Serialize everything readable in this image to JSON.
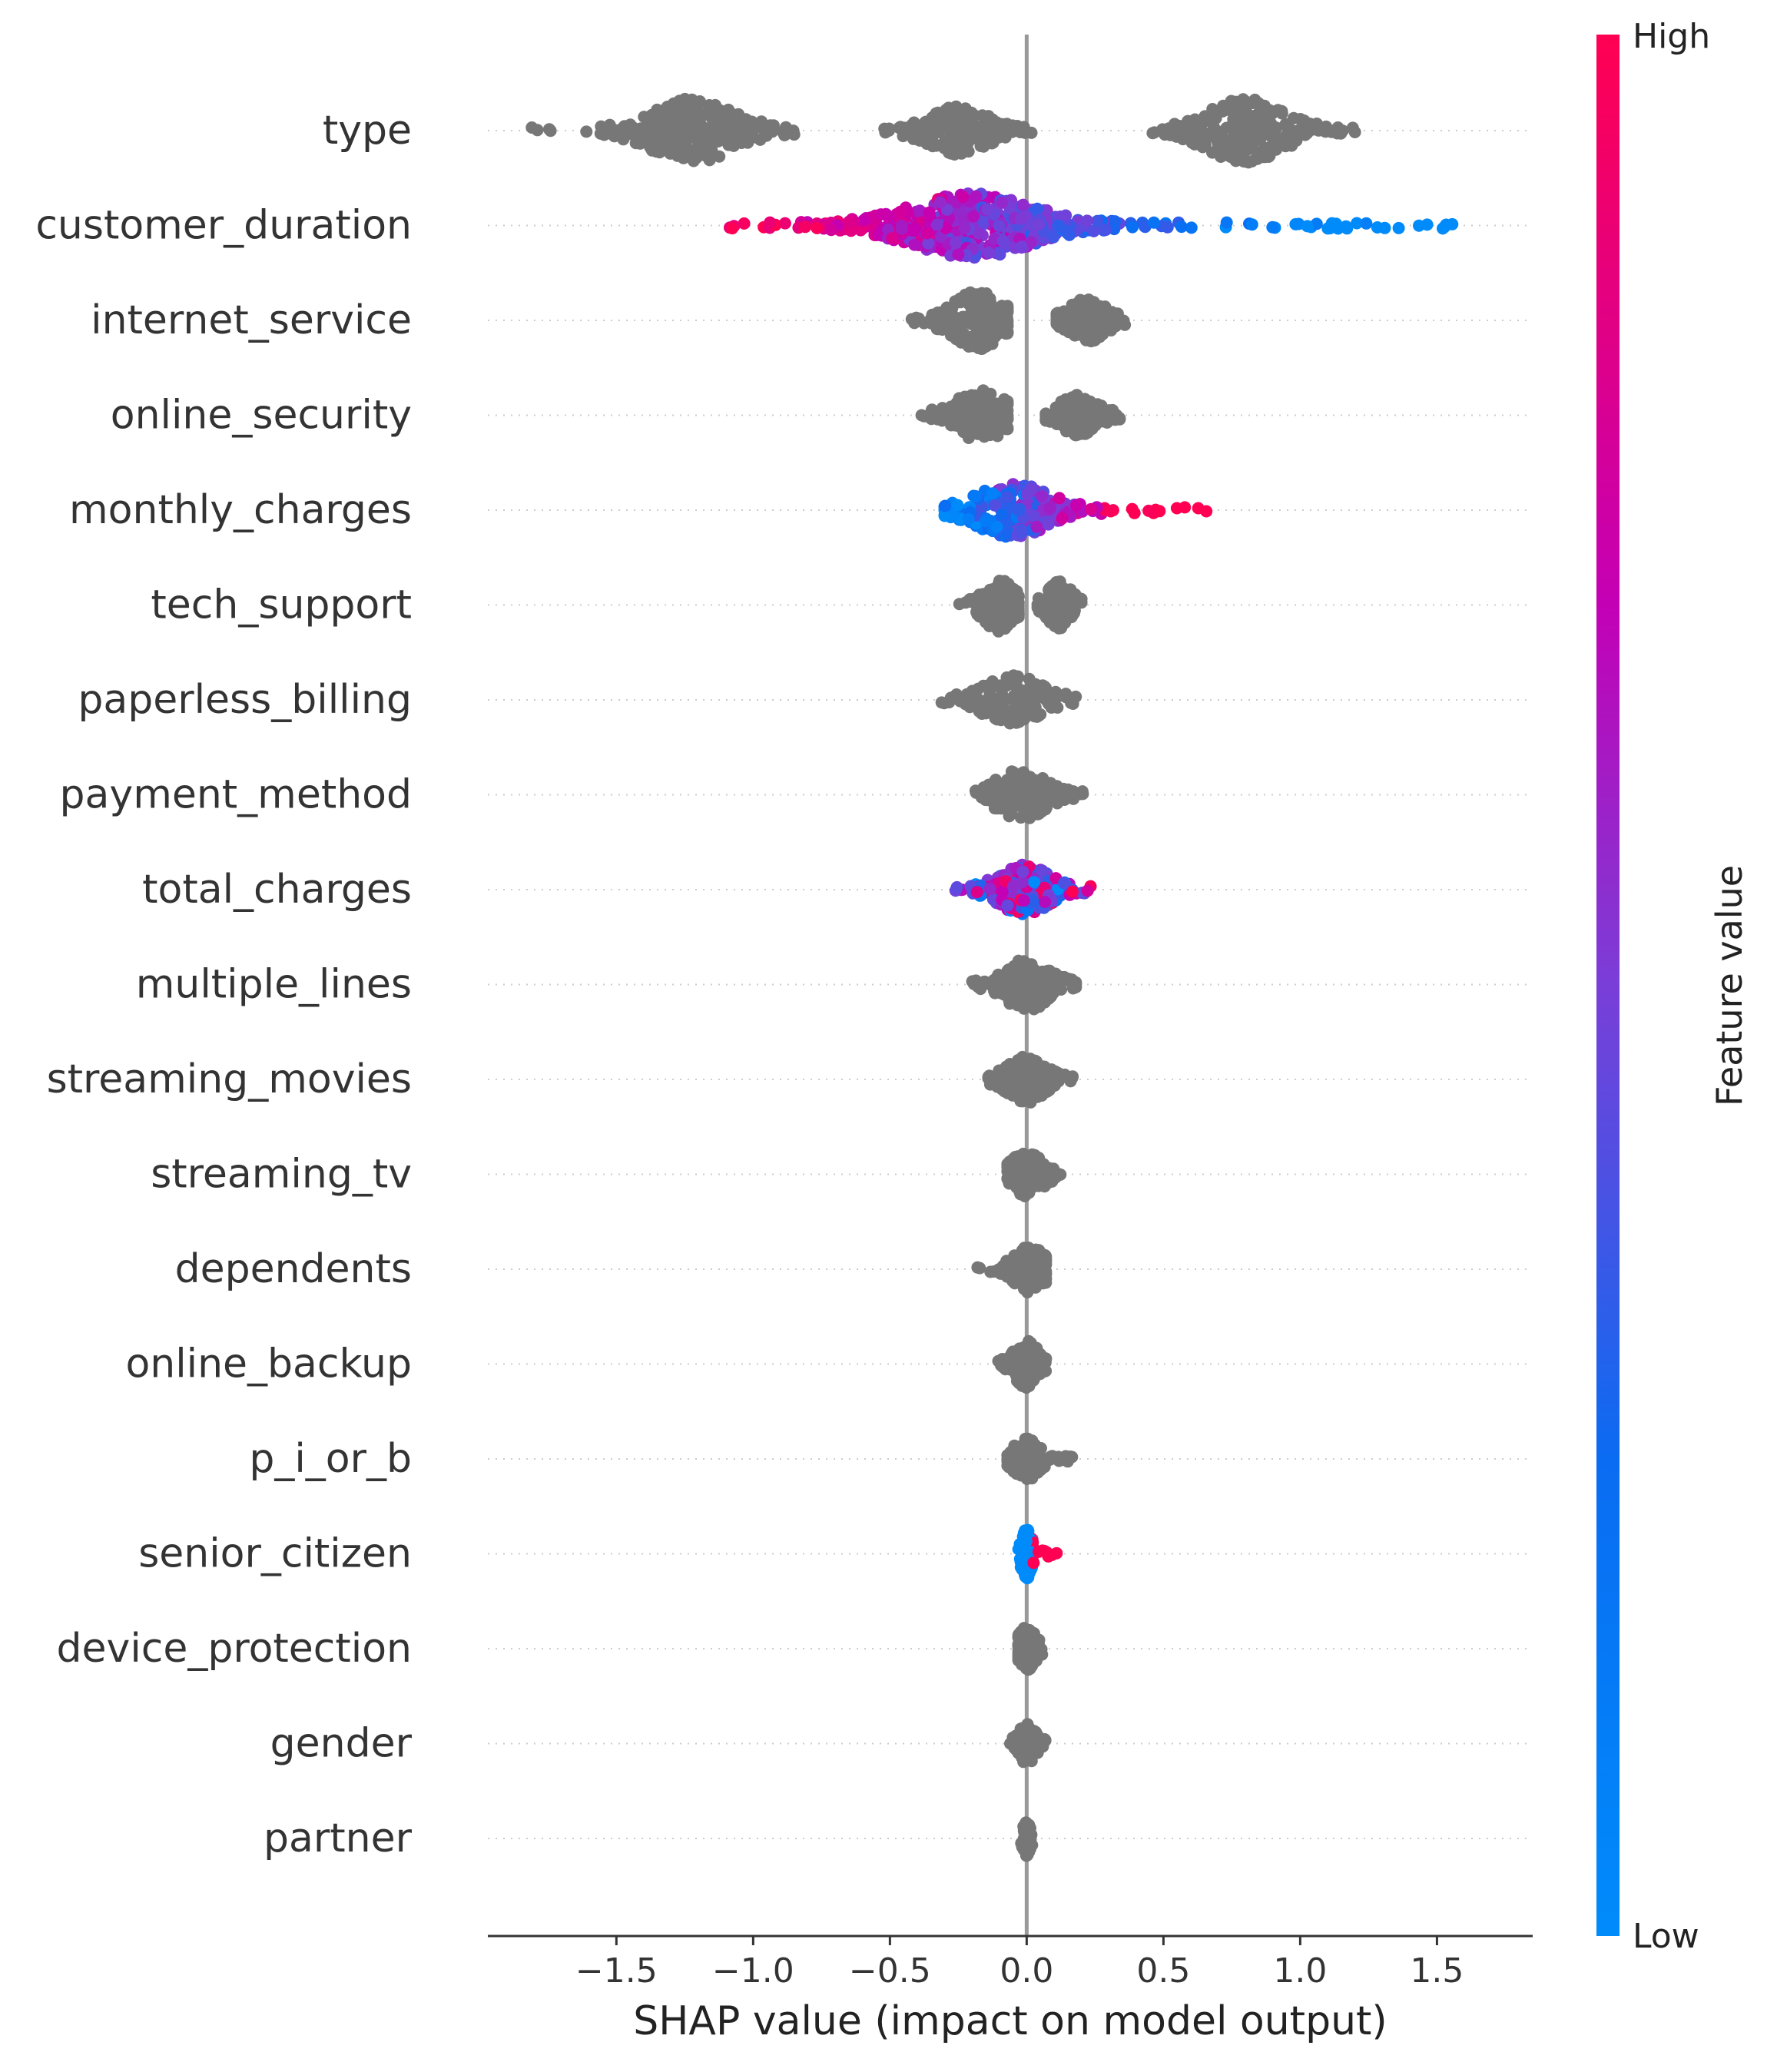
{
  "chart_data": {
    "type": "scatter",
    "subtype": "shap-beeswarm",
    "xlabel": "SHAP value (impact on model output)",
    "ylabel": "",
    "xlim": [
      -1.97,
      1.85
    ],
    "xticks": [
      -1.5,
      -1.0,
      -0.5,
      0.0,
      0.5,
      1.0,
      1.5
    ],
    "xtick_labels": [
      "−1.5",
      "−1.0",
      "−0.5",
      "0.0",
      "0.5",
      "1.0",
      "1.5"
    ],
    "colorbar": {
      "title": "Feature value",
      "high_label": "High",
      "low_label": "Low"
    },
    "colors": {
      "high": "#ff0052",
      "low": "#008bfb",
      "no_value": "#777777",
      "zero_line": "#999999"
    },
    "features": [
      {
        "name": "type",
        "colored": false,
        "groups": [
          {
            "center": -1.22,
            "spread": 0.12,
            "min": -1.82,
            "max": -0.85,
            "height": 1.0
          },
          {
            "center": -0.25,
            "spread": 0.08,
            "min": -0.52,
            "max": 0.02,
            "height": 0.75
          },
          {
            "center": 0.8,
            "spread": 0.11,
            "min": 0.45,
            "max": 1.2,
            "height": 1.0
          }
        ]
      },
      {
        "name": "customer_duration",
        "colored": true,
        "groups": [
          {
            "center": -0.2,
            "spread": 0.18,
            "min": -1.1,
            "max": 1.65,
            "height": 1.0
          }
        ]
      },
      {
        "name": "internet_service",
        "colored": false,
        "groups": [
          {
            "center": -0.18,
            "spread": 0.07,
            "min": -0.42,
            "max": -0.07,
            "height": 0.9
          },
          {
            "center": 0.22,
            "spread": 0.05,
            "min": 0.11,
            "max": 0.37,
            "height": 0.65
          }
        ]
      },
      {
        "name": "online_security",
        "colored": false,
        "groups": [
          {
            "center": -0.17,
            "spread": 0.07,
            "min": -0.42,
            "max": -0.07,
            "height": 0.8
          },
          {
            "center": 0.19,
            "spread": 0.05,
            "min": 0.07,
            "max": 0.34,
            "height": 0.6
          }
        ]
      },
      {
        "name": "monthly_charges",
        "colored": true,
        "groups": [
          {
            "center": -0.05,
            "spread": 0.1,
            "min": -0.3,
            "max": 0.66,
            "height": 0.85
          }
        ]
      },
      {
        "name": "tech_support",
        "colored": false,
        "groups": [
          {
            "center": -0.1,
            "spread": 0.04,
            "min": -0.25,
            "max": -0.03,
            "height": 0.8
          },
          {
            "center": 0.12,
            "spread": 0.03,
            "min": 0.04,
            "max": 0.2,
            "height": 0.7
          }
        ]
      },
      {
        "name": "paperless_billing",
        "colored": false,
        "groups": [
          {
            "center": -0.05,
            "spread": 0.08,
            "min": -0.37,
            "max": 0.18,
            "height": 0.75
          }
        ]
      },
      {
        "name": "payment_method",
        "colored": false,
        "groups": [
          {
            "center": -0.02,
            "spread": 0.07,
            "min": -0.2,
            "max": 0.22,
            "height": 0.75
          }
        ]
      },
      {
        "name": "total_charges",
        "colored": true,
        "groups": [
          {
            "center": -0.01,
            "spread": 0.07,
            "min": -0.3,
            "max": 0.27,
            "height": 0.75
          }
        ]
      },
      {
        "name": "multiple_lines",
        "colored": false,
        "groups": [
          {
            "center": 0.0,
            "spread": 0.06,
            "min": -0.23,
            "max": 0.18,
            "height": 0.8
          }
        ]
      },
      {
        "name": "streaming_movies",
        "colored": false,
        "groups": [
          {
            "center": 0.0,
            "spread": 0.05,
            "min": -0.14,
            "max": 0.17,
            "height": 0.7
          }
        ]
      },
      {
        "name": "streaming_tv",
        "colored": false,
        "groups": [
          {
            "center": 0.0,
            "spread": 0.04,
            "min": -0.07,
            "max": 0.13,
            "height": 0.7
          }
        ]
      },
      {
        "name": "dependents",
        "colored": false,
        "groups": [
          {
            "center": 0.01,
            "spread": 0.04,
            "min": -0.19,
            "max": 0.07,
            "height": 0.7
          }
        ]
      },
      {
        "name": "online_backup",
        "colored": false,
        "groups": [
          {
            "center": 0.0,
            "spread": 0.03,
            "min": -0.11,
            "max": 0.07,
            "height": 0.7
          }
        ]
      },
      {
        "name": "p_i_or_b",
        "colored": false,
        "groups": [
          {
            "center": 0.0,
            "spread": 0.03,
            "min": -0.07,
            "max": 0.18,
            "height": 0.65
          }
        ]
      },
      {
        "name": "senior_citizen",
        "colored": true,
        "groups": [
          {
            "center": 0.0,
            "spread": 0.01,
            "min": -0.03,
            "max": 0.11,
            "height": 0.75
          }
        ]
      },
      {
        "name": "device_protection",
        "colored": false,
        "groups": [
          {
            "center": 0.0,
            "spread": 0.02,
            "min": -0.03,
            "max": 0.06,
            "height": 0.65
          }
        ]
      },
      {
        "name": "gender",
        "colored": false,
        "groups": [
          {
            "center": 0.0,
            "spread": 0.02,
            "min": -0.06,
            "max": 0.07,
            "height": 0.6
          }
        ]
      },
      {
        "name": "partner",
        "colored": false,
        "groups": [
          {
            "center": 0.0,
            "spread": 0.005,
            "min": -0.02,
            "max": 0.02,
            "height": 0.5
          }
        ]
      }
    ]
  }
}
